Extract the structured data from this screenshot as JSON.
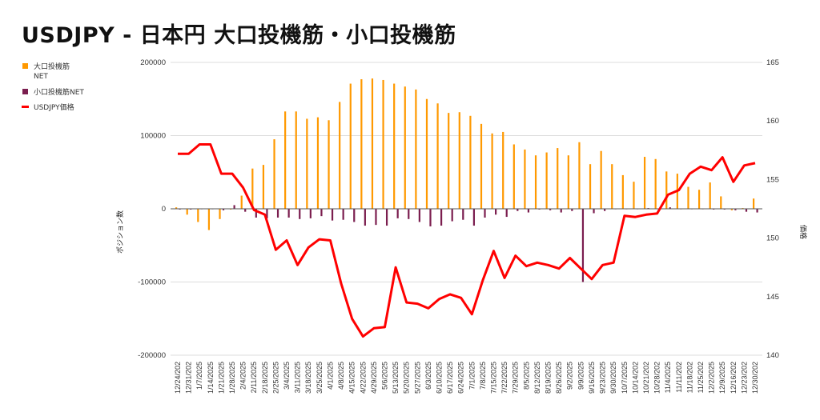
{
  "chart_data": {
    "type": "bar+line",
    "title": "USDJPY - 日本円 大口投機筋・小口投機筋",
    "ylabel_left": "ポジション数",
    "ylabel_right": "価格",
    "ylim_left": [
      -200000,
      200000
    ],
    "yticks_left": [
      "200000",
      "100000",
      "0",
      "-100000",
      "-200000"
    ],
    "ylim_right": [
      140,
      165
    ],
    "yticks_right": [
      "165",
      "160",
      "155",
      "150",
      "145",
      "140"
    ],
    "grid": true,
    "legend_position": "left",
    "colors": {
      "large": "#FF9900",
      "small": "#7B1E4F",
      "price": "#FF0000"
    },
    "categories": [
      "12/24/202",
      "12/31/202",
      "1/7/2025",
      "1/14/2025",
      "1/21/2025",
      "1/28/2025",
      "2/4/2025",
      "2/11/2025",
      "2/18/2025",
      "2/25/2025",
      "3/4/2025",
      "3/11/2025",
      "3/18/2025",
      "3/25/2025",
      "4/1/2025",
      "4/8/2025",
      "4/15/2025",
      "4/22/2025",
      "4/29/2025",
      "5/6/2025",
      "5/13/2025",
      "5/20/2025",
      "5/27/2025",
      "6/3/2025",
      "6/10/2025",
      "6/17/2025",
      "6/24/2025",
      "7/1/2025",
      "7/8/2025",
      "7/15/2025",
      "7/22/2025",
      "7/29/2025",
      "8/5/2025",
      "8/12/2025",
      "8/19/2025",
      "8/26/2025",
      "9/2/2025",
      "9/9/2025",
      "9/16/2025",
      "9/23/2025",
      "9/30/2025",
      "10/7/2025",
      "10/14/202",
      "10/21/202",
      "10/28/202",
      "11/4/2025",
      "11/11/202",
      "11/18/202",
      "11/25/202",
      "12/2/2025",
      "12/9/2025",
      "12/16/202",
      "12/23/202",
      "12/30/202"
    ],
    "series": [
      {
        "name": "大口投機筋\nNET",
        "legend": [
          "大口投機筋",
          "NET"
        ],
        "type": "bar",
        "axis": "left",
        "values": [
          2000,
          -8000,
          -18000,
          -29000,
          -14000,
          -1000,
          18000,
          55000,
          60000,
          95000,
          133000,
          133000,
          123000,
          125000,
          121000,
          146000,
          171000,
          177000,
          178000,
          176000,
          171000,
          167000,
          163000,
          150000,
          144000,
          131000,
          132000,
          127000,
          116000,
          103000,
          105000,
          88000,
          81000,
          73000,
          77000,
          83000,
          73000,
          91000,
          61000,
          79000,
          61000,
          46000,
          37000,
          71000,
          68000,
          51000,
          48000,
          30000,
          26000,
          36000,
          17000,
          -2000,
          1000,
          14000
        ]
      },
      {
        "name": "小口投機筋NET",
        "legend": [
          "小口投機筋NET"
        ],
        "type": "bar",
        "axis": "left",
        "values": [
          -1000,
          -1000,
          0,
          0,
          -2000,
          5000,
          -4000,
          -12000,
          -13000,
          -12000,
          -12000,
          -14000,
          -13000,
          -10000,
          -16000,
          -15000,
          -18000,
          -23000,
          -22000,
          -23000,
          -13000,
          -14000,
          -18000,
          -24000,
          -23000,
          -17000,
          -15000,
          -23000,
          -12000,
          -8000,
          -11000,
          -3000,
          -5000,
          -1000,
          -2000,
          -5000,
          -3000,
          -100000,
          -6000,
          -3000,
          0,
          0,
          0,
          1000,
          0,
          2000,
          0,
          0,
          0,
          -1000,
          -1000,
          -2000,
          -4000,
          -5000
        ]
      },
      {
        "name": "USDJPY価格",
        "legend": [
          "USDJPY価格"
        ],
        "type": "line",
        "axis": "right",
        "values": [
          157.2,
          157.2,
          158.0,
          158.0,
          155.5,
          155.5,
          154.3,
          152.4,
          152.0,
          149.0,
          149.8,
          147.7,
          149.2,
          149.9,
          149.8,
          146.1,
          143.1,
          141.6,
          142.3,
          142.4,
          147.5,
          144.5,
          144.4,
          144.0,
          144.8,
          145.2,
          144.9,
          143.5,
          146.4,
          148.9,
          146.6,
          148.5,
          147.6,
          147.9,
          147.7,
          147.4,
          148.3,
          147.4,
          146.5,
          147.7,
          147.9,
          151.9,
          151.8,
          152.0,
          152.1,
          153.7,
          154.1,
          155.5,
          156.1,
          155.8,
          156.9,
          154.8,
          156.2,
          156.4
        ]
      }
    ]
  }
}
